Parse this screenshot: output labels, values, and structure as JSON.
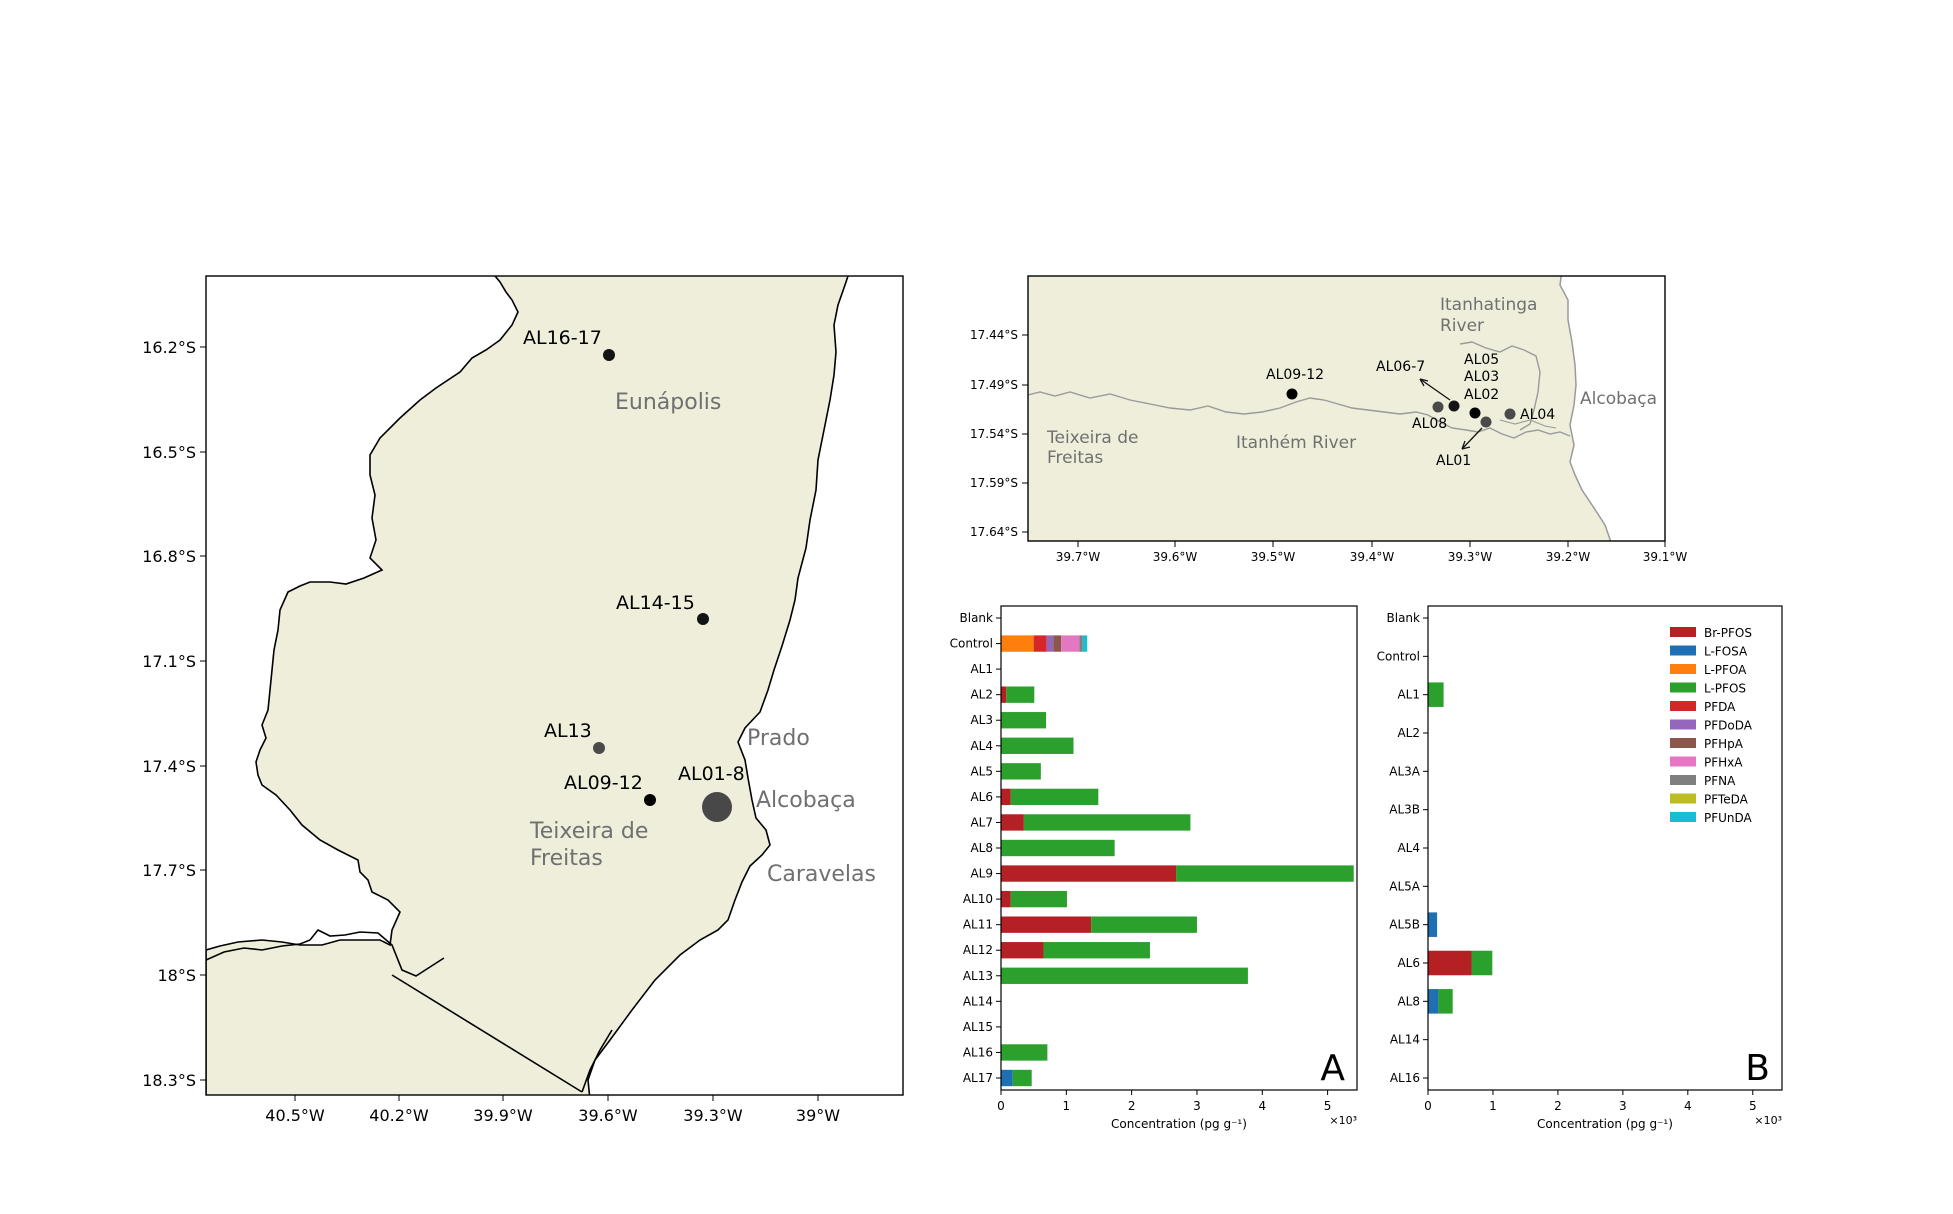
{
  "colors": {
    "land": "#efeedb",
    "coast": "#000000",
    "coast_zoom": "#9a9a9a",
    "river_zoom": "#9a9a9a",
    "place_label": "#707070",
    "site_dark": "#141414",
    "site_grey": "#4a4a4a",
    "site_big": "#484848"
  },
  "map_main": {
    "x_ticks": [
      "40.5°W",
      "40.2°W",
      "39.9°W",
      "39.6°W",
      "39.3°W",
      "39°W"
    ],
    "y_ticks": [
      "16.2°S",
      "16.5°S",
      "16.8°S",
      "17.1°S",
      "17.4°S",
      "17.7°S",
      "18°S",
      "18.3°S"
    ],
    "sites": [
      "AL16-17",
      "AL14-15",
      "AL13",
      "AL09-12",
      "AL01-8"
    ],
    "places": {
      "eunapolis": "Eunápolis",
      "prado": "Prado",
      "alcobaca": "Alcobaça",
      "teixeira_1": "Teixeira de",
      "teixeira_2": "Freitas",
      "caravelas": "Caravelas"
    }
  },
  "map_zoom": {
    "x_ticks": [
      "39.7°W",
      "39.6°W",
      "39.5°W",
      "39.4°W",
      "39.3°W",
      "39.2°W",
      "39.1°W"
    ],
    "y_ticks": [
      "17.44°S",
      "17.49°S",
      "17.54°S",
      "17.59°S",
      "17.64°S"
    ],
    "sites": [
      "AL09-12",
      "AL06-7",
      "AL05",
      "AL03",
      "AL02",
      "AL04",
      "AL08",
      "AL01"
    ],
    "places": {
      "itanhatinga_1": "Itanhatinga",
      "itanhatinga_2": "River",
      "alcobaca": "Alcobaça",
      "teixeira_1": "Teixeira de",
      "teixeira_2": "Freitas",
      "itanhem": "Itanhém River"
    }
  },
  "chart_data": [
    {
      "type": "bar",
      "orientation": "horizontal",
      "stacked": true,
      "panel_label": "A",
      "xlabel": "Concentration (pg g⁻¹)",
      "x_multiplier": "×10³",
      "xlim": [
        0,
        5.45
      ],
      "x_ticks": [
        "0",
        "1",
        "2",
        "3",
        "4",
        "5"
      ],
      "categories": [
        "Blank",
        "Control",
        "AL1",
        "AL2",
        "AL3",
        "AL4",
        "AL5",
        "AL6",
        "AL7",
        "AL8",
        "AL9",
        "AL10",
        "AL11",
        "AL12",
        "AL13",
        "AL14",
        "AL15",
        "AL16",
        "AL17"
      ],
      "series": [
        {
          "name": "Br-PFOS",
          "color": "#b52025",
          "values": [
            0,
            0,
            0,
            0.08,
            0,
            0,
            0,
            0.15,
            0.35,
            0,
            2.68,
            0.15,
            1.38,
            0.65,
            0,
            0,
            0,
            0,
            0
          ]
        },
        {
          "name": "L-FOSA",
          "color": "#1f6fb4",
          "values": [
            0,
            0,
            0,
            0,
            0,
            0,
            0,
            0,
            0,
            0,
            0,
            0,
            0,
            0,
            0,
            0,
            0,
            0,
            0.18
          ]
        },
        {
          "name": "L-PFOA",
          "color": "#ff7f0e",
          "values": [
            0,
            0.5,
            0,
            0,
            0,
            0,
            0,
            0,
            0,
            0,
            0,
            0,
            0,
            0,
            0,
            0,
            0,
            0,
            0
          ]
        },
        {
          "name": "L-PFOS",
          "color": "#2ca02c",
          "values": [
            0,
            0,
            0,
            0.43,
            0.69,
            1.11,
            0.61,
            1.34,
            2.55,
            1.74,
            2.72,
            0.86,
            1.62,
            1.63,
            3.78,
            0,
            0,
            0.71,
            0.29
          ]
        },
        {
          "name": "PFDA",
          "color": "#d62728",
          "values": [
            0,
            0.2,
            0,
            0,
            0,
            0,
            0,
            0,
            0,
            0,
            0,
            0,
            0,
            0,
            0,
            0,
            0,
            0,
            0
          ]
        },
        {
          "name": "PFDoDA",
          "color": "#9467bd",
          "values": [
            0,
            0.1,
            0,
            0,
            0,
            0,
            0,
            0,
            0,
            0,
            0,
            0,
            0,
            0,
            0,
            0,
            0,
            0,
            0
          ]
        },
        {
          "name": "PFHpA",
          "color": "#8c564b",
          "values": [
            0,
            0.12,
            0,
            0,
            0,
            0,
            0,
            0,
            0,
            0,
            0,
            0,
            0,
            0,
            0,
            0,
            0,
            0,
            0
          ]
        },
        {
          "name": "PFHxA",
          "color": "#e377c2",
          "values": [
            0,
            0.28,
            0,
            0,
            0,
            0,
            0,
            0,
            0,
            0,
            0,
            0,
            0,
            0,
            0,
            0,
            0,
            0,
            0
          ]
        },
        {
          "name": "PFNA",
          "color": "#7f7f7f",
          "values": [
            0,
            0.05,
            0,
            0,
            0,
            0,
            0,
            0,
            0,
            0,
            0,
            0,
            0,
            0,
            0,
            0,
            0,
            0,
            0
          ]
        },
        {
          "name": "PFTeDA",
          "color": "#bcbd22",
          "values": [
            0,
            0,
            0,
            0,
            0,
            0,
            0,
            0,
            0,
            0,
            0,
            0,
            0,
            0,
            0,
            0,
            0,
            0,
            0
          ]
        },
        {
          "name": "PFUnDA",
          "color": "#17becf",
          "values": [
            0,
            0.07,
            0,
            0,
            0,
            0,
            0,
            0,
            0,
            0,
            0,
            0,
            0,
            0,
            0,
            0,
            0,
            0,
            0
          ]
        }
      ]
    },
    {
      "type": "bar",
      "orientation": "horizontal",
      "stacked": true,
      "panel_label": "B",
      "xlabel": "Concentration (pg g⁻¹)",
      "x_multiplier": "×10³",
      "xlim": [
        0,
        5.45
      ],
      "x_ticks": [
        "0",
        "1",
        "2",
        "3",
        "4",
        "5"
      ],
      "legend_position": "top-right",
      "categories": [
        "Blank",
        "Control",
        "AL1",
        "AL2",
        "AL3A",
        "AL3B",
        "AL4",
        "AL5A",
        "AL5B",
        "AL6",
        "AL8",
        "AL14",
        "AL16"
      ],
      "series": [
        {
          "name": "Br-PFOS",
          "color": "#b52025",
          "values": [
            0,
            0,
            0,
            0,
            0,
            0,
            0,
            0,
            0,
            0.67,
            0,
            0,
            0
          ]
        },
        {
          "name": "L-FOSA",
          "color": "#1f6fb4",
          "values": [
            0,
            0,
            0,
            0,
            0,
            0,
            0,
            0,
            0.14,
            0,
            0.16,
            0,
            0
          ]
        },
        {
          "name": "L-PFOA",
          "color": "#ff7f0e",
          "values": [
            0,
            0,
            0,
            0,
            0,
            0,
            0,
            0,
            0,
            0,
            0,
            0,
            0
          ]
        },
        {
          "name": "L-PFOS",
          "color": "#2ca02c",
          "values": [
            0,
            0,
            0.24,
            0,
            0,
            0,
            0,
            0,
            0,
            0.32,
            0.22,
            0,
            0
          ]
        },
        {
          "name": "PFDA",
          "color": "#d62728",
          "values": [
            0,
            0,
            0,
            0,
            0,
            0,
            0,
            0,
            0,
            0,
            0,
            0,
            0
          ]
        },
        {
          "name": "PFDoDA",
          "color": "#9467bd",
          "values": [
            0,
            0,
            0,
            0,
            0,
            0,
            0,
            0,
            0,
            0,
            0,
            0,
            0
          ]
        },
        {
          "name": "PFHpA",
          "color": "#8c564b",
          "values": [
            0,
            0,
            0,
            0,
            0,
            0,
            0,
            0,
            0,
            0,
            0,
            0,
            0
          ]
        },
        {
          "name": "PFHxA",
          "color": "#e377c2",
          "values": [
            0,
            0,
            0,
            0,
            0,
            0,
            0,
            0,
            0,
            0,
            0,
            0,
            0
          ]
        },
        {
          "name": "PFNA",
          "color": "#7f7f7f",
          "values": [
            0,
            0,
            0,
            0,
            0,
            0,
            0,
            0,
            0,
            0,
            0,
            0,
            0
          ]
        },
        {
          "name": "PFTeDA",
          "color": "#bcbd22",
          "values": [
            0,
            0,
            0,
            0,
            0,
            0,
            0,
            0,
            0,
            0,
            0,
            0,
            0
          ]
        },
        {
          "name": "PFUnDA",
          "color": "#17becf",
          "values": [
            0,
            0,
            0,
            0,
            0,
            0,
            0,
            0,
            0,
            0,
            0,
            0,
            0
          ]
        }
      ]
    }
  ]
}
